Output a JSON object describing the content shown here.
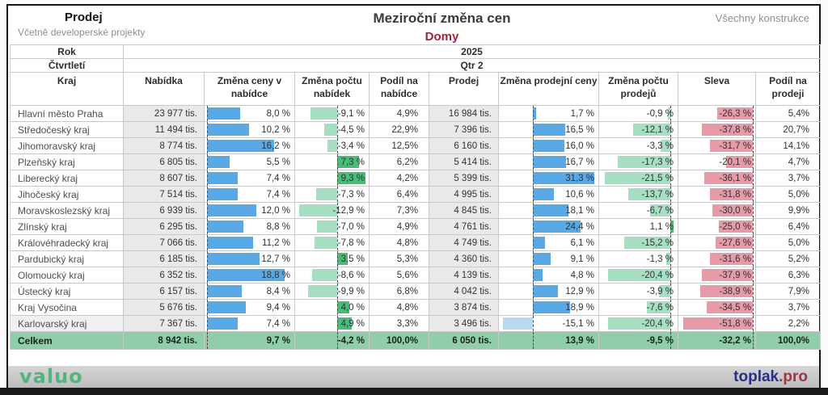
{
  "chart_data": {
    "type": "table",
    "header": {
      "left_title": "Prodej",
      "left_subtitle": "Včetně developerské projekty",
      "center_title": "Meziroční změna cen",
      "center_subtitle": "Domy",
      "right_label": "Všechny konstrukce"
    },
    "filters": {
      "year_label": "Rok",
      "year_value": "2025",
      "quarter_label": "Čtvrtletí",
      "quarter_value": "Qtr 2"
    },
    "columns": [
      {
        "key": "kraj",
        "label": "Kraj"
      },
      {
        "key": "nabidka",
        "label": "Nabídka"
      },
      {
        "key": "zc_nab",
        "label": "Změna ceny v nabídce"
      },
      {
        "key": "zp_nab",
        "label": "Změna počtu nabídek"
      },
      {
        "key": "podil_nab",
        "label": "Podíl na nabídce"
      },
      {
        "key": "prodej",
        "label": "Prodej"
      },
      {
        "key": "zp_ceny",
        "label": "Změna prodejní ceny"
      },
      {
        "key": "zp_prod",
        "label": "Změna počtu prodejů"
      },
      {
        "key": "sleva",
        "label": "Sleva"
      },
      {
        "key": "podil_prod",
        "label": "Podíl na prodeji"
      }
    ],
    "bar_axes": {
      "zc_nab": {
        "min": 0,
        "max": 20.5,
        "pos": "#58a9e6",
        "neg": "#b9d9f0"
      },
      "zp_nab": {
        "min": -13.5,
        "max": 9.7,
        "pos": "#47bd78",
        "neg": "#a7dfc2"
      },
      "zp_ceny": {
        "min": -16,
        "max": 32,
        "pos": "#58a9e6",
        "neg": "#b9d9f0"
      },
      "zp_prod": {
        "min": -22.5,
        "max": 1.5,
        "pos": "#47bd78",
        "neg": "#a7dfc2"
      },
      "sleva": {
        "min": -53.5,
        "max": 0,
        "pos": "#e79aa8",
        "neg": "#e79aa8"
      }
    },
    "rows": [
      {
        "kraj": "Hlavní město Praha",
        "nabidka": "23 977 tis.",
        "zc_nab": {
          "t": "8,0 %",
          "v": 8.0
        },
        "zp_nab": {
          "t": "-9,1 %",
          "v": -9.1
        },
        "podil_nab": "4,9%",
        "prodej": "16 984 tis.",
        "zp_ceny": {
          "t": "1,7 %",
          "v": 1.7
        },
        "zp_prod": {
          "t": "-0,9 %",
          "v": -0.9
        },
        "sleva": {
          "t": "-26,3 %",
          "v": -26.3
        },
        "podil_prod": "5,4%",
        "highlight": false
      },
      {
        "kraj": "Středočeský kraj",
        "nabidka": "11 494 tis.",
        "zc_nab": {
          "t": "10,2 %",
          "v": 10.2
        },
        "zp_nab": {
          "t": "-4,5 %",
          "v": -4.5
        },
        "podil_nab": "22,9%",
        "prodej": "7 396 tis.",
        "zp_ceny": {
          "t": "16,5 %",
          "v": 16.5
        },
        "zp_prod": {
          "t": "-12,1 %",
          "v": -12.1
        },
        "sleva": {
          "t": "-37,8 %",
          "v": -37.8
        },
        "podil_prod": "20,7%",
        "highlight": false
      },
      {
        "kraj": "Jihomoravský kraj",
        "nabidka": "8 774 tis.",
        "zc_nab": {
          "t": "16,2 %",
          "v": 16.2
        },
        "zp_nab": {
          "t": "-3,4 %",
          "v": -3.4
        },
        "podil_nab": "12,5%",
        "prodej": "6 160 tis.",
        "zp_ceny": {
          "t": "16,0 %",
          "v": 16.0
        },
        "zp_prod": {
          "t": "-3,3 %",
          "v": -3.3
        },
        "sleva": {
          "t": "-31,7 %",
          "v": -31.7
        },
        "podil_prod": "14,1%",
        "highlight": false
      },
      {
        "kraj": "Plzeňský kraj",
        "nabidka": "6 805 tis.",
        "zc_nab": {
          "t": "5,5 %",
          "v": 5.5
        },
        "zp_nab": {
          "t": "7,3 %",
          "v": 7.3
        },
        "podil_nab": "6,2%",
        "prodej": "5 414 tis.",
        "zp_ceny": {
          "t": "16,7 %",
          "v": 16.7
        },
        "zp_prod": {
          "t": "-17,3 %",
          "v": -17.3
        },
        "sleva": {
          "t": "-20,1 %",
          "v": -20.1
        },
        "podil_prod": "4,7%",
        "highlight": false
      },
      {
        "kraj": "Liberecký kraj",
        "nabidka": "8 607 tis.",
        "zc_nab": {
          "t": "7,4 %",
          "v": 7.4
        },
        "zp_nab": {
          "t": "9,3 %",
          "v": 9.3
        },
        "podil_nab": "4,2%",
        "prodej": "5 399 tis.",
        "zp_ceny": {
          "t": "31,3 %",
          "v": 31.3
        },
        "zp_prod": {
          "t": "-21,5 %",
          "v": -21.5
        },
        "sleva": {
          "t": "-36,1 %",
          "v": -36.1
        },
        "podil_prod": "3,7%",
        "highlight": false
      },
      {
        "kraj": "Jihočeský kraj",
        "nabidka": "7 514 tis.",
        "zc_nab": {
          "t": "7,4 %",
          "v": 7.4
        },
        "zp_nab": {
          "t": "-7,3 %",
          "v": -7.3
        },
        "podil_nab": "6,4%",
        "prodej": "4 995 tis.",
        "zp_ceny": {
          "t": "10,6 %",
          "v": 10.6
        },
        "zp_prod": {
          "t": "-13,7 %",
          "v": -13.7
        },
        "sleva": {
          "t": "-31,8 %",
          "v": -31.8
        },
        "podil_prod": "5,0%",
        "highlight": false
      },
      {
        "kraj": "Moravskoslezský kraj",
        "nabidka": "6 939 tis.",
        "zc_nab": {
          "t": "12,0 %",
          "v": 12.0
        },
        "zp_nab": {
          "t": "-12,9 %",
          "v": -12.9
        },
        "podil_nab": "7,3%",
        "prodej": "4 845 tis.",
        "zp_ceny": {
          "t": "18,1 %",
          "v": 18.1
        },
        "zp_prod": {
          "t": "-6,7 %",
          "v": -6.7
        },
        "sleva": {
          "t": "-30,0 %",
          "v": -30.0
        },
        "podil_prod": "9,9%",
        "highlight": false
      },
      {
        "kraj": "Zlínský kraj",
        "nabidka": "6 295 tis.",
        "zc_nab": {
          "t": "8,8 %",
          "v": 8.8
        },
        "zp_nab": {
          "t": "-7,0 %",
          "v": -7.0
        },
        "podil_nab": "4,9%",
        "prodej": "4 761 tis.",
        "zp_ceny": {
          "t": "24,4 %",
          "v": 24.4
        },
        "zp_prod": {
          "t": "1,1 %",
          "v": 1.1
        },
        "sleva": {
          "t": "-25,0 %",
          "v": -25.0
        },
        "podil_prod": "6,4%",
        "highlight": false
      },
      {
        "kraj": "Královéhradecký kraj",
        "nabidka": "7 066 tis.",
        "zc_nab": {
          "t": "11,2 %",
          "v": 11.2
        },
        "zp_nab": {
          "t": "-7,8 %",
          "v": -7.8
        },
        "podil_nab": "4,8%",
        "prodej": "4 749 tis.",
        "zp_ceny": {
          "t": "6,1 %",
          "v": 6.1
        },
        "zp_prod": {
          "t": "-15,2 %",
          "v": -15.2
        },
        "sleva": {
          "t": "-27,6 %",
          "v": -27.6
        },
        "podil_prod": "5,0%",
        "highlight": false
      },
      {
        "kraj": "Pardubický kraj",
        "nabidka": "6 185 tis.",
        "zc_nab": {
          "t": "12,7 %",
          "v": 12.7
        },
        "zp_nab": {
          "t": "3,5 %",
          "v": 3.5
        },
        "podil_nab": "5,3%",
        "prodej": "4 360 tis.",
        "zp_ceny": {
          "t": "9,1 %",
          "v": 9.1
        },
        "zp_prod": {
          "t": "-1,3 %",
          "v": -1.3
        },
        "sleva": {
          "t": "-31,6 %",
          "v": -31.6
        },
        "podil_prod": "5,2%",
        "highlight": false
      },
      {
        "kraj": "Olomoucký kraj",
        "nabidka": "6 352 tis.",
        "zc_nab": {
          "t": "18,8 %",
          "v": 18.8
        },
        "zp_nab": {
          "t": "-8,6 %",
          "v": -8.6
        },
        "podil_nab": "5,6%",
        "prodej": "4 139 tis.",
        "zp_ceny": {
          "t": "4,8 %",
          "v": 4.8
        },
        "zp_prod": {
          "t": "-20,4 %",
          "v": -20.4
        },
        "sleva": {
          "t": "-37,9 %",
          "v": -37.9
        },
        "podil_prod": "6,3%",
        "highlight": false
      },
      {
        "kraj": "Ústecký kraj",
        "nabidka": "6 157 tis.",
        "zc_nab": {
          "t": "8,4 %",
          "v": 8.4
        },
        "zp_nab": {
          "t": "-9,9 %",
          "v": -9.9
        },
        "podil_nab": "6,8%",
        "prodej": "4 042 tis.",
        "zp_ceny": {
          "t": "12,9 %",
          "v": 12.9
        },
        "zp_prod": {
          "t": "-3,9 %",
          "v": -3.9
        },
        "sleva": {
          "t": "-38,9 %",
          "v": -38.9
        },
        "podil_prod": "7,9%",
        "highlight": false
      },
      {
        "kraj": "Kraj Vysočina",
        "nabidka": "5 676 tis.",
        "zc_nab": {
          "t": "9,4 %",
          "v": 9.4
        },
        "zp_nab": {
          "t": "4,0 %",
          "v": 4.0
        },
        "podil_nab": "4,8%",
        "prodej": "3 874 tis.",
        "zp_ceny": {
          "t": "18,9 %",
          "v": 18.9
        },
        "zp_prod": {
          "t": "-7,6 %",
          "v": -7.6
        },
        "sleva": {
          "t": "-34,5 %",
          "v": -34.5
        },
        "podil_prod": "3,7%",
        "highlight": false
      },
      {
        "kraj": "Karlovarský kraj",
        "nabidka": "7 367 tis.",
        "zc_nab": {
          "t": "7,4 %",
          "v": 7.4
        },
        "zp_nab": {
          "t": "4,9 %",
          "v": 4.9
        },
        "podil_nab": "3,3%",
        "prodej": "3 496 tis.",
        "zp_ceny": {
          "t": "-15,1 %",
          "v": -15.1
        },
        "zp_prod": {
          "t": "-20,4 %",
          "v": -20.4
        },
        "sleva": {
          "t": "-51,8 %",
          "v": -51.8
        },
        "podil_prod": "2,2%",
        "highlight": true
      }
    ],
    "total": {
      "kraj": "Celkem",
      "nabidka": "8 942 tis.",
      "zc_nab": "9,7 %",
      "zp_nab": "-4,2 %",
      "podil_nab": "100,0%",
      "prodej": "6 050 tis.",
      "zp_ceny": "13,9 %",
      "zp_prod": "-9,5 %",
      "sleva": "-32,2 %",
      "podil_prod": "100,0%"
    },
    "footer": {
      "brand_left": "valuo",
      "brand_right_main": "toplak",
      "brand_right_suffix": ".pro"
    },
    "colors": {
      "subtitle_red": "#a22638",
      "bar_blue": "#58a9e6",
      "bar_blue_light": "#b9d9f0",
      "bar_green": "#47bd78",
      "bar_green_light": "#a7dfc2",
      "bar_pink": "#e79aa8",
      "total_row_green": "#90cdaa",
      "valuo_green": "#53b57e",
      "toplak_navy": "#272f85",
      "toplak_red": "#9c3644"
    }
  }
}
